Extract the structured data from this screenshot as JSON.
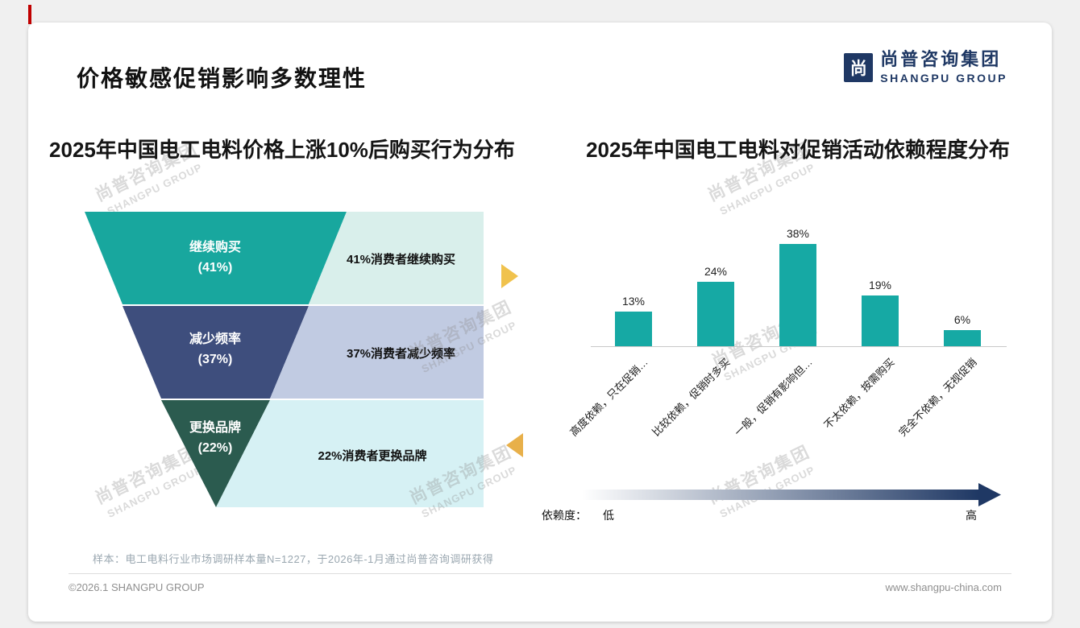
{
  "page": {
    "title": "价格敏感促销影响多数理性",
    "logo": {
      "icon_text": "尚",
      "cn": "尚普咨询集团",
      "en": "SHANGPU GROUP",
      "color": "#1f3864"
    },
    "footnote": "样本：电工电料行业市场调研样本量N=1227，于2026年-1月通过尚普咨询调研获得",
    "footer_left": "©2026.1 SHANGPU GROUP",
    "footer_right": "www.shangpu-china.com",
    "accent_red": "#c00000"
  },
  "watermark": {
    "cn": "尚普咨询集团",
    "en": "SHANGPU GROUP"
  },
  "chart_data": [
    {
      "type": "funnel",
      "title": "2025年中国电工电料价格上涨10%后购买行为分布",
      "categories": [
        "继续购买",
        "减少频率",
        "更换品牌"
      ],
      "values": [
        41,
        37,
        22
      ],
      "stages": [
        {
          "name": "继续购买",
          "pct_label": "(41%)",
          "value": 41,
          "annotation": "41%消费者继续购买",
          "color": "#18a79e",
          "annotation_bg": "#d9efeb"
        },
        {
          "name": "减少频率",
          "pct_label": "(37%)",
          "value": 37,
          "annotation": "37%消费者减少频率",
          "color": "#3e4e7d",
          "annotation_bg": "#c1cbe2"
        },
        {
          "name": "更换品牌",
          "pct_label": "(22%)",
          "value": 22,
          "annotation": "22%消费者更换品牌",
          "color": "#2b5b4f",
          "annotation_bg": "#d6f1f4"
        }
      ],
      "arrows": {
        "right_color": "#f0c24d",
        "left_color": "#e8b04a"
      }
    },
    {
      "type": "bar",
      "title": "2025年中国电工电料对促销活动依赖程度分布",
      "categories": [
        "高度依赖，只在促销…",
        "比较依赖，促销时多买",
        "一般，促销有影响但…",
        "不太依赖，按需购买",
        "完全不依赖，无视促销"
      ],
      "values": [
        13,
        24,
        38,
        19,
        6
      ],
      "value_labels": [
        "13%",
        "24%",
        "38%",
        "19%",
        "6%"
      ],
      "bar_color": "#16a9a4",
      "ylim": [
        0,
        45
      ],
      "grid": false,
      "legend_position": "none",
      "dependency_axis": {
        "label": "依赖度：",
        "low": "低",
        "high": "高",
        "gradient_from": "#ffffff",
        "gradient_to": "#1f3864"
      }
    }
  ]
}
